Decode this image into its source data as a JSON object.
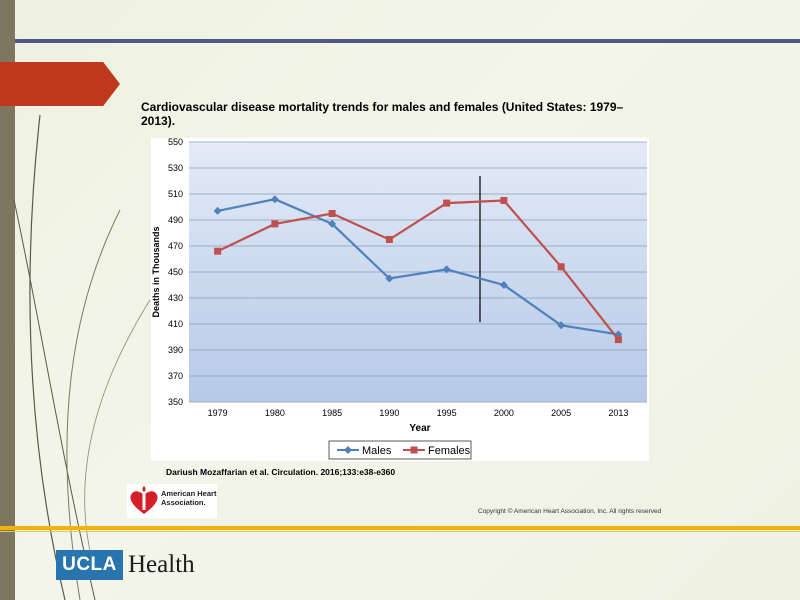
{
  "slide": {
    "title": "Cardiovascular disease mortality trends for males and females (United States: 1979–2013).",
    "citation": "Dariush Mozaffarian et al. Circulation. 2016;133:e38-e360",
    "copyright": "Copyright © American Heart Association, Inc. All rights reserved",
    "aha_logo_text": "American Heart Association.",
    "ucla_logo": "UCLA",
    "health_logo": "Health",
    "colors": {
      "left_strip": "#7f7660",
      "top_rule": "#4e5a86",
      "red_tab": "#c0391f",
      "gold_rule": "#f0b310",
      "ucla_blue": "#2774ae"
    }
  },
  "chart_data": {
    "type": "line",
    "categories": [
      "1979",
      "1980",
      "1985",
      "1990",
      "1995",
      "2000",
      "2005",
      "2013"
    ],
    "series": [
      {
        "name": "Males",
        "color": "#4f81bd",
        "marker": "diamond",
        "values": [
          497,
          506,
          487,
          445,
          452,
          440,
          409,
          402
        ]
      },
      {
        "name": "Females",
        "color": "#c0504d",
        "marker": "square",
        "values": [
          466,
          487,
          495,
          475,
          503,
          505,
          454,
          398
        ]
      }
    ],
    "xlabel": "Year",
    "ylabel": "Deaths in Thousands",
    "ylim": [
      350,
      550
    ],
    "yticks": [
      350,
      370,
      390,
      410,
      430,
      450,
      470,
      490,
      510,
      530,
      550
    ],
    "grid": true,
    "legend": "bottom",
    "annotation": "vertical line between 1995 and 2000"
  }
}
